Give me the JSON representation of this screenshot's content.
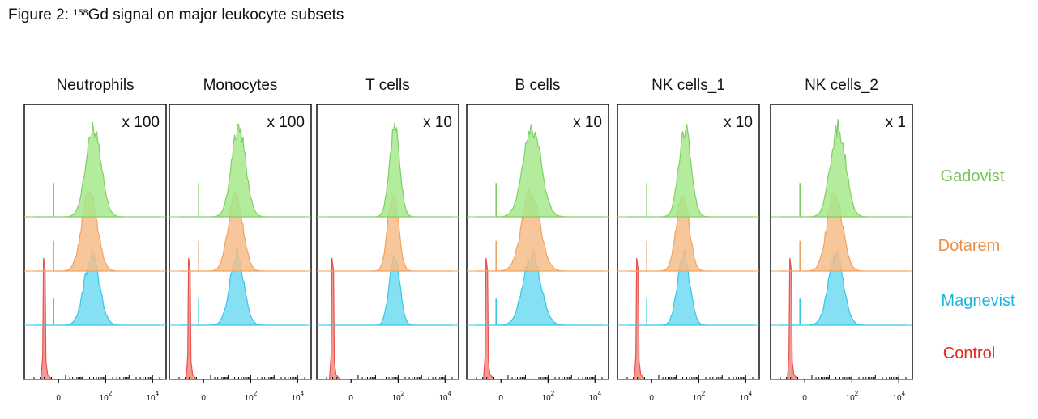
{
  "figure": {
    "title_prefix": "Figure 2: ",
    "title_isotope_mass": "158",
    "title_rest": "Gd signal on major leukocyte subsets"
  },
  "chart_data": {
    "type": "area",
    "x_scale": "symlog",
    "x_ticks": [
      {
        "value": 0,
        "label": "0"
      },
      {
        "value": 100,
        "label": "10",
        "exp": "2"
      },
      {
        "value": 10000,
        "label": "10",
        "exp": "4"
      }
    ],
    "xlim": [
      -10,
      20000
    ],
    "track_order_top_to_bottom": [
      "Gadovist",
      "Dotarem",
      "Magnevist",
      "Control"
    ],
    "colors": {
      "Gadovist": {
        "fill": "#a6e98c",
        "line": "#7fd063",
        "label": "#77c35a"
      },
      "Dotarem": {
        "fill": "#f6bd8a",
        "line": "#f0a35e",
        "label": "#ea8f45"
      },
      "Magnevist": {
        "fill": "#6fdaf0",
        "line": "#39c6e6",
        "label": "#19b6e0"
      },
      "Control": {
        "fill": "#f08a84",
        "line": "#e8524b",
        "label": "#e3241b"
      }
    },
    "legend": {
      "placement": "right",
      "entries": [
        "Gadovist",
        "Dotarem",
        "Magnevist",
        "Control"
      ]
    },
    "panels": [
      {
        "title": "Neutrophils",
        "factor": "x 100",
        "peaks": {
          "Gadovist": 30,
          "Dotarem": 20,
          "Magnevist": 25,
          "Control": -3
        },
        "spread": 0.32,
        "spike_at_zero": true
      },
      {
        "title": "Monocytes",
        "factor": "x 100",
        "peaks": {
          "Gadovist": 30,
          "Dotarem": 22,
          "Magnevist": 25,
          "Control": -3
        },
        "spread": 0.3,
        "spike_at_zero": true
      },
      {
        "title": "T cells",
        "factor": "x 10",
        "peaks": {
          "Gadovist": 70,
          "Dotarem": 60,
          "Magnevist": 70,
          "Control": -5
        },
        "spread": 0.22,
        "spike_at_zero": false
      },
      {
        "title": "B cells",
        "factor": "x 10",
        "peaks": {
          "Gadovist": 20,
          "Dotarem": 18,
          "Magnevist": 20,
          "Control": -3
        },
        "spread": 0.38,
        "spike_at_zero": true
      },
      {
        "title": "NK cells_1",
        "factor": "x 10",
        "peaks": {
          "Gadovist": 25,
          "Dotarem": 20,
          "Magnevist": 22,
          "Control": -3
        },
        "spread": 0.26,
        "spike_at_zero": true
      },
      {
        "title": "NK cells_2",
        "factor": "x 1",
        "peaks": {
          "Gadovist": 25,
          "Dotarem": 18,
          "Magnevist": 20,
          "Control": -3
        },
        "spread": 0.32,
        "spike_at_zero": true
      }
    ]
  }
}
